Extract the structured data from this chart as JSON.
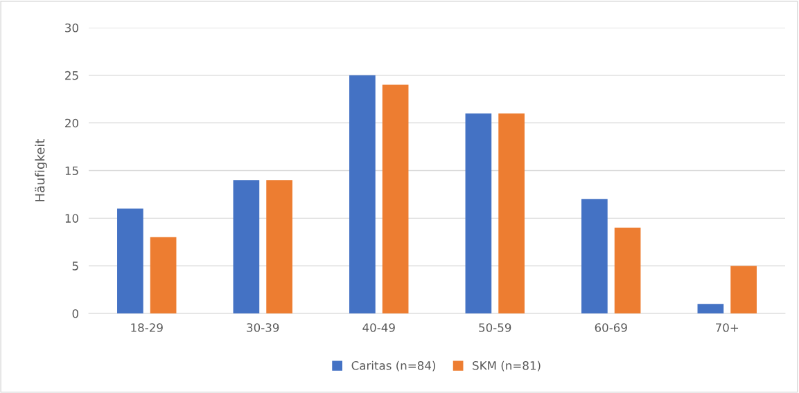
{
  "chart_data": {
    "type": "bar",
    "ylabel": "Häufigkeit",
    "categories": [
      "18-29",
      "30-39",
      "40-49",
      "50-59",
      "60-69",
      "70+"
    ],
    "series": [
      {
        "name": "Caritas (n=84)",
        "color": "#4472c4",
        "values": [
          11,
          14,
          25,
          21,
          12,
          1
        ]
      },
      {
        "name": "SKM (n=81)",
        "color": "#ed7d31",
        "values": [
          8,
          14,
          24,
          21,
          9,
          5
        ]
      }
    ],
    "ylim": [
      0,
      30
    ],
    "yticks": [
      0,
      5,
      10,
      15,
      20,
      25,
      30
    ],
    "grid": "y",
    "legend": "bottom"
  }
}
